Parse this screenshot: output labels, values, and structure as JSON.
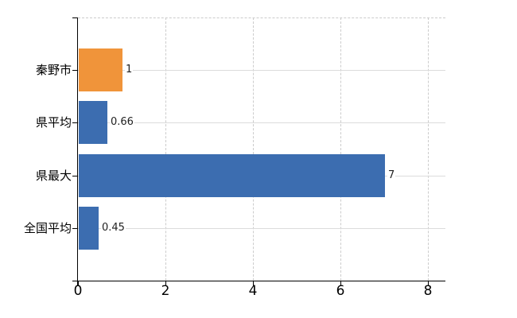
{
  "chart_data": {
    "type": "bar",
    "orientation": "horizontal",
    "title": "",
    "xlabel": "",
    "ylabel": "",
    "categories": [
      "秦野市",
      "県平均",
      "県最大",
      "全国平均"
    ],
    "values": [
      1,
      0.66,
      7,
      0.45
    ],
    "value_labels": [
      "1",
      "0.66",
      "7",
      "0.45"
    ],
    "series": [
      {
        "name": "",
        "values": [
          1,
          0.66,
          7,
          0.45
        ],
        "colors": [
          "#f0943a",
          "#3c6db0",
          "#3c6db0",
          "#3c6db0"
        ]
      }
    ],
    "x_ticks": [
      0,
      2,
      4,
      6,
      8
    ],
    "x_tick_labels": [
      "0",
      "2",
      "4",
      "6",
      "8"
    ],
    "xlim": [
      0,
      8.4
    ],
    "grid": true,
    "legend": false,
    "data_labels_visible": true,
    "colors": {
      "bar_orange": "#f0943a",
      "bar_blue": "#3c6db0",
      "axis": "#000000",
      "grid_horizontal": "#dcdcdc",
      "grid_vertical": "#cccccc",
      "text": "#000000",
      "data_label_text": "#222222",
      "background": "#ffffff"
    }
  }
}
